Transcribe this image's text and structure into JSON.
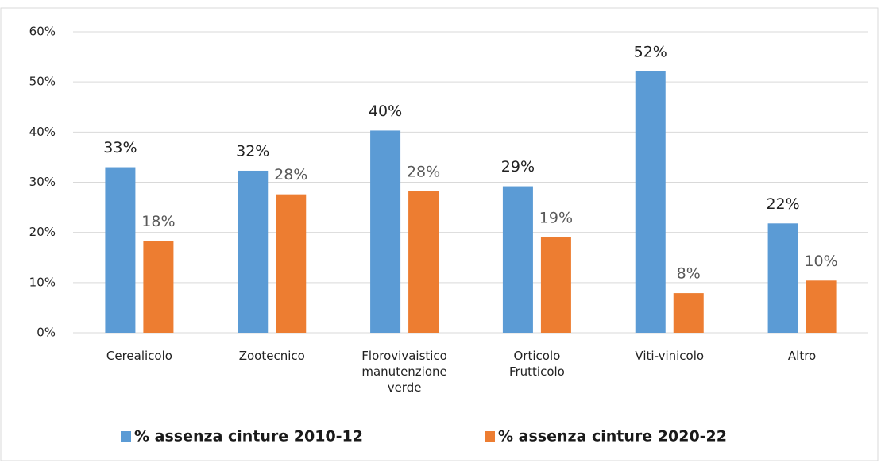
{
  "chart_data": {
    "type": "bar",
    "categories": [
      "Cerealicolo",
      "Zootecnico",
      "Florovivaistico\nmanutenzione\nverde",
      "Orticolo\nFrutticolo",
      "Viti-vinicolo",
      "Altro"
    ],
    "series": [
      {
        "name": "% assenza cinture 2010-12",
        "color": "#5b9bd5",
        "values": [
          33,
          32.3,
          40.3,
          29.2,
          52.1,
          21.8
        ],
        "value_labels": [
          "33%",
          "32%",
          "40%",
          "29%",
          "52%",
          "22%"
        ]
      },
      {
        "name": "% assenza cinture 2020-22",
        "color": "#ed7d31",
        "values": [
          18.3,
          27.6,
          28.2,
          19,
          7.9,
          10.4
        ],
        "value_labels": [
          "18%",
          "28%",
          "28%",
          "19%",
          "8%",
          "10%"
        ]
      }
    ],
    "ylim": [
      0,
      60
    ],
    "yticks": [
      {
        "value": 0,
        "label": "0%"
      },
      {
        "value": 10,
        "label": "10%"
      },
      {
        "value": 20,
        "label": "20%"
      },
      {
        "value": 30,
        "label": "30%"
      },
      {
        "value": 40,
        "label": "40%"
      },
      {
        "value": 50,
        "label": "50%"
      },
      {
        "value": 60,
        "label": "60%"
      }
    ],
    "grid": true,
    "legend": "bottom"
  }
}
